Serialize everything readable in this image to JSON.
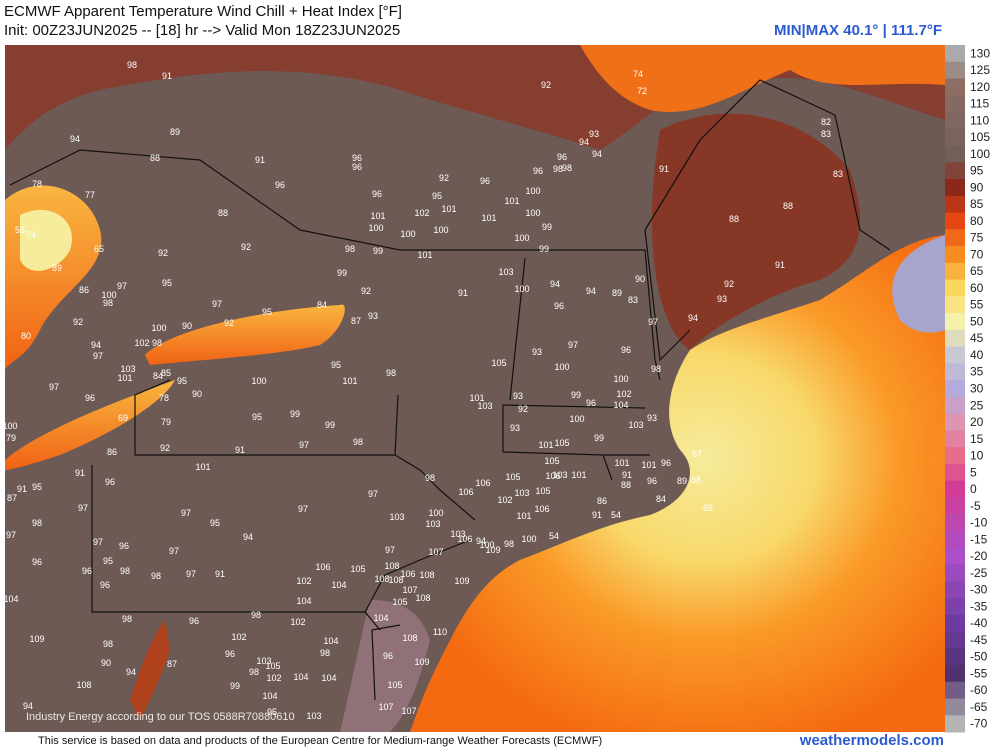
{
  "header": {
    "title": "ECMWF Apparent Temperature Wind Chill + Heat Index [°F]",
    "subtitle": "Init: 00Z23JUN2025 -- [18] hr --> Valid Mon 18Z23JUN2025",
    "minmax": "MIN|MAX 40.1° | 111.7°F"
  },
  "colorbar": {
    "ticks": [
      130,
      125,
      120,
      115,
      110,
      105,
      100,
      95,
      90,
      85,
      80,
      75,
      70,
      65,
      60,
      55,
      50,
      45,
      40,
      35,
      30,
      25,
      20,
      15,
      10,
      5,
      0,
      -5,
      -10,
      -15,
      -20,
      -25,
      -30,
      -35,
      -40,
      -45,
      -50,
      -55,
      -60,
      -65,
      -70
    ]
  },
  "map": {
    "watermark": "Industry Energy according to our TOS 0588R70880610",
    "values": [
      98,
      91,
      92,
      74,
      72,
      94,
      89,
      88,
      91,
      96,
      96,
      96,
      78,
      77,
      88,
      96,
      95,
      92,
      96,
      101,
      102,
      100,
      101,
      100,
      101,
      101,
      100,
      99,
      100,
      100,
      100,
      99,
      94,
      93,
      94,
      96,
      96,
      98,
      98,
      91,
      88,
      88,
      83,
      83,
      82,
      91,
      92,
      93,
      94,
      97,
      90,
      83,
      89,
      94,
      96,
      94,
      58,
      74,
      65,
      89,
      92,
      92,
      98,
      99,
      101,
      103,
      100,
      91,
      99,
      86,
      100,
      97,
      98,
      95,
      97,
      92,
      80,
      100,
      90,
      92,
      95,
      84,
      93,
      92,
      87,
      94,
      97,
      102,
      98,
      103,
      101,
      84,
      85,
      95,
      95,
      100,
      101,
      98,
      97,
      96,
      90,
      78,
      69,
      79,
      100,
      79,
      95,
      99,
      99,
      98,
      97,
      91,
      92,
      86,
      105,
      101,
      103,
      93,
      92,
      93,
      93,
      97,
      100,
      99,
      96,
      100,
      96,
      98,
      102,
      104,
      103,
      93,
      100,
      99,
      101,
      105,
      105,
      106,
      101,
      101,
      91,
      101,
      96,
      67,
      96,
      88,
      89,
      88,
      84,
      86,
      105,
      105,
      103,
      102,
      98,
      106,
      106,
      106,
      101,
      91,
      54,
      65,
      54,
      100,
      98,
      94,
      100,
      109,
      103,
      106,
      100,
      103,
      103,
      97,
      97,
      101,
      91,
      96,
      95,
      91,
      87,
      97,
      97,
      95,
      94,
      98,
      97,
      96,
      97,
      96,
      97,
      95,
      98,
      98,
      97,
      91,
      96,
      96,
      97,
      107,
      108,
      106,
      108,
      108,
      108,
      105,
      106,
      104,
      107,
      108,
      105,
      109,
      102,
      104,
      104,
      98,
      96,
      98,
      102,
      102,
      104,
      108,
      110,
      109,
      98,
      96,
      103,
      105,
      104,
      98,
      96,
      109,
      90,
      94,
      87,
      98,
      102,
      104,
      104,
      104,
      105,
      108,
      95,
      103,
      107,
      107,
      94,
      99,
      103
    ]
  },
  "footer": {
    "credit": "This service is based on data and products of the European Centre for Medium-range Weather Forecasts (ECMWF)",
    "site": "weathermodels.com"
  }
}
